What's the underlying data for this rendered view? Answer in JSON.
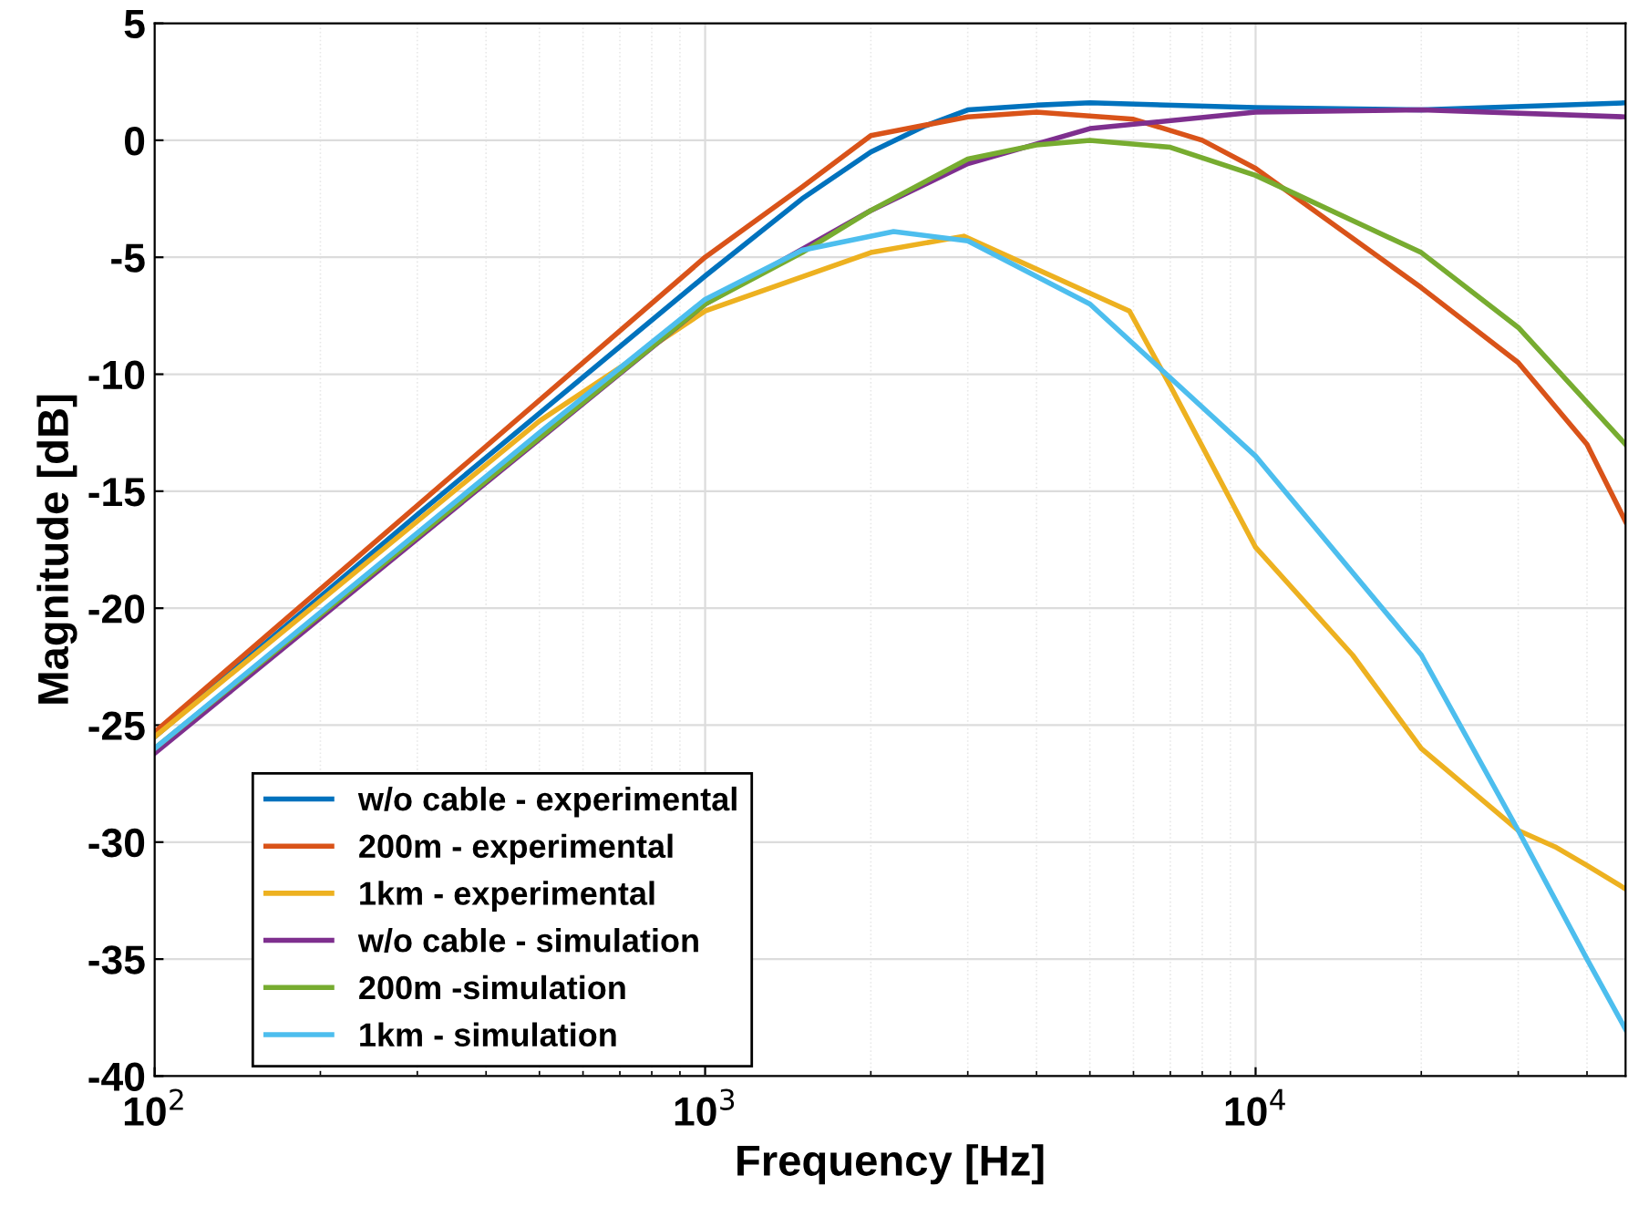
{
  "chart_data": {
    "type": "line",
    "xlabel": "Frequency [Hz]",
    "ylabel": "Magnitude [dB]",
    "log": "x",
    "xlim": [
      100,
      47000
    ],
    "ylim": [
      -40,
      5
    ],
    "xticks": [
      {
        "value": 100,
        "label": "10$^{2}$"
      },
      {
        "value": 1000,
        "label": "10$^{3}$"
      },
      {
        "value": 10000,
        "label": "10$^{4}$"
      }
    ],
    "yticks": [
      -40,
      -35,
      -30,
      -25,
      -20,
      -15,
      -10,
      -5,
      0,
      5
    ],
    "grid": true,
    "legend": "bottom left",
    "line_style": "solid",
    "marker": "none",
    "series": [
      {
        "name": "w/o cable - experimental",
        "color": "#0072bd",
        "x": [
          100,
          300,
          1000,
          1500,
          2000,
          2500,
          3000,
          4000,
          5000,
          10000,
          20000,
          47000
        ],
        "values": [
          -25.5,
          -16,
          -5.8,
          -2.5,
          -0.5,
          0.6,
          1.3,
          1.5,
          1.6,
          1.4,
          1.3,
          1.6
        ]
      },
      {
        "name": "200m - experimental",
        "color": "#d95319",
        "x": [
          100,
          1000,
          1500,
          2000,
          3000,
          4000,
          6000,
          8000,
          10000,
          20000,
          30000,
          40000,
          47000
        ],
        "values": [
          -25.3,
          -5,
          -2,
          0.2,
          1,
          1.2,
          0.9,
          0,
          -1.2,
          -6.3,
          -9.5,
          -13,
          -16.3
        ]
      },
      {
        "name": "1km - experimental",
        "color": "#edb120",
        "x": [
          100,
          500,
          1000,
          2000,
          2950,
          5900,
          7000,
          10000,
          15000,
          20000,
          30000,
          35000,
          40000,
          47000
        ],
        "values": [
          -25.5,
          -12,
          -7.3,
          -4.8,
          -4.1,
          -7.3,
          -10.5,
          -17.4,
          -22,
          -26,
          -29.5,
          -30.2,
          -31,
          -32
        ]
      },
      {
        "name": "w/o cable - simulation",
        "color": "#7e2f8e",
        "x": [
          100,
          1000,
          2000,
          3000,
          5000,
          10000,
          20000,
          47000
        ],
        "values": [
          -26.2,
          -7,
          -3,
          -1,
          0.5,
          1.2,
          1.3,
          1
        ]
      },
      {
        "name": "200m -simulation",
        "color": "#77ac30",
        "x": [
          100,
          1000,
          1500,
          2000,
          3000,
          4000,
          5000,
          7000,
          10000,
          20000,
          30000,
          47000
        ],
        "values": [
          -26,
          -7,
          -4.8,
          -3,
          -0.8,
          -0.2,
          0,
          -0.3,
          -1.5,
          -4.8,
          -8,
          -13
        ]
      },
      {
        "name": "1km - simulation",
        "color": "#4dbeee",
        "x": [
          100,
          500,
          1000,
          1500,
          2200,
          3000,
          5000,
          10000,
          20000,
          30000,
          40000,
          47000
        ],
        "values": [
          -26,
          -12.5,
          -6.8,
          -4.7,
          -3.9,
          -4.3,
          -7,
          -13.5,
          -22,
          -29.5,
          -35,
          -38
        ]
      }
    ]
  }
}
